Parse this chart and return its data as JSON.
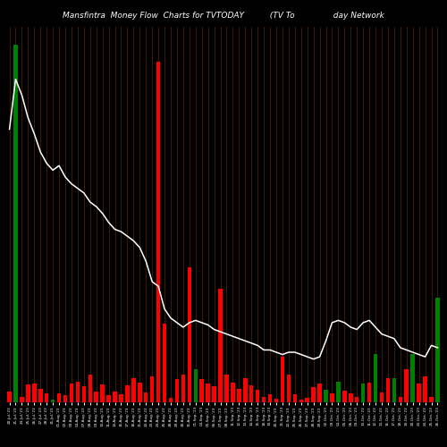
{
  "title": "Mansfintra  Money Flow  Charts for TVTODAY          (TV To               day Network",
  "bg_color": "#000000",
  "bar_colors": [
    "red",
    "green",
    "red",
    "red",
    "red",
    "red",
    "red",
    "green",
    "red",
    "red",
    "red",
    "red",
    "red",
    "red",
    "red",
    "red",
    "red",
    "red",
    "red",
    "red",
    "red",
    "red",
    "red",
    "red",
    "red",
    "red",
    "red",
    "red",
    "red",
    "red",
    "green",
    "red",
    "red",
    "red",
    "red",
    "red",
    "red",
    "red",
    "red",
    "red",
    "red",
    "red",
    "red",
    "red",
    "red",
    "red",
    "red",
    "red",
    "red",
    "red",
    "red",
    "green",
    "red",
    "green",
    "red",
    "red",
    "red",
    "green",
    "red",
    "green",
    "red",
    "red",
    "green",
    "red",
    "red",
    "green",
    "red",
    "red",
    "red",
    "green"
  ],
  "bar_values": [
    12,
    410,
    6,
    20,
    22,
    15,
    10,
    3,
    10,
    8,
    22,
    24,
    18,
    32,
    12,
    20,
    8,
    12,
    9,
    19,
    28,
    23,
    11,
    30,
    390,
    90,
    5,
    27,
    32,
    155,
    38,
    27,
    21,
    18,
    130,
    32,
    23,
    15,
    28,
    19,
    14,
    6,
    9,
    4,
    52,
    32,
    9,
    3,
    5,
    17,
    22,
    14,
    10,
    24,
    13,
    10,
    6,
    21,
    23,
    55,
    11,
    28,
    28,
    6,
    38,
    55,
    22,
    30,
    6,
    120
  ],
  "line_values": [
    170,
    192,
    185,
    175,
    168,
    160,
    155,
    152,
    154,
    149,
    146,
    144,
    142,
    138,
    136,
    133,
    129,
    126,
    125,
    123,
    121,
    118,
    112,
    103,
    101,
    91,
    87,
    85,
    83,
    85,
    86,
    85,
    84,
    82,
    81,
    80,
    79,
    78,
    77,
    76,
    75,
    73,
    73,
    72,
    71,
    72,
    72,
    71,
    70,
    69,
    70,
    77,
    85,
    86,
    85,
    83,
    82,
    85,
    86,
    83,
    80,
    79,
    78,
    74,
    73,
    72,
    71,
    70,
    75,
    74
  ],
  "line_color": "#ffffff",
  "grid_color": "#5a2800",
  "title_color": "#ffffff",
  "title_fontsize": 6.5,
  "n_bars": 70,
  "dates": [
    "20-Jul-'23",
    "21-Jul-'23",
    "24-Jul-'23",
    "25-Jul-'23",
    "26-Jul-'23",
    "27-Jul-'23",
    "28-Jul-'23",
    "31-Jul-'23",
    "01-Aug-'23",
    "02-Aug-'23",
    "03-Aug-'23",
    "04-Aug-'23",
    "07-Aug-'23",
    "08-Aug-'23",
    "09-Aug-'23",
    "10-Aug-'23",
    "11-Aug-'23",
    "14-Aug-'23",
    "16-Aug-'23",
    "17-Aug-'23",
    "18-Aug-'23",
    "21-Aug-'23",
    "22-Aug-'23",
    "23-Aug-'23",
    "24-Aug-'23",
    "25-Aug-'23",
    "28-Aug-'23",
    "29-Aug-'23",
    "30-Aug-'23",
    "31-Aug-'23",
    "01-Sep-'23",
    "04-Sep-'23",
    "05-Sep-'23",
    "06-Sep-'23",
    "07-Sep-'23",
    "08-Sep-'23",
    "11-Sep-'23",
    "12-Sep-'23",
    "13-Sep-'23",
    "14-Sep-'23",
    "15-Sep-'23",
    "18-Sep-'23",
    "19-Sep-'23",
    "20-Sep-'23",
    "21-Sep-'23",
    "22-Sep-'23",
    "25-Sep-'23",
    "26-Sep-'23",
    "27-Sep-'23",
    "28-Sep-'23",
    "29-Sep-'23",
    "02-Oct-'23",
    "03-Oct-'23",
    "04-Oct-'23",
    "05-Oct-'23",
    "06-Oct-'23",
    "09-Oct-'23",
    "10-Oct-'23",
    "11-Oct-'23",
    "12-Oct-'23",
    "13-Oct-'23",
    "16-Oct-'23",
    "17-Oct-'23",
    "18-Oct-'23",
    "19-Oct-'23",
    "20-Oct-'23",
    "23-Oct-'23",
    "24-Oct-'23",
    "25-Oct-'23",
    "26-Oct-'23"
  ],
  "ylim_bars": [
    0,
    430
  ],
  "ylim_line": [
    50,
    215
  ]
}
